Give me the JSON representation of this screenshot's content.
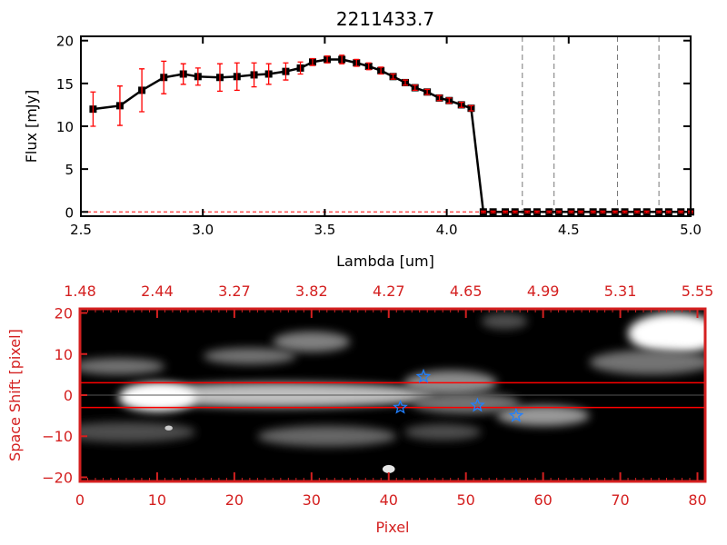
{
  "chart_data": [
    {
      "type": "line",
      "title": "2211433.7",
      "xlabel": "Lambda [um]",
      "ylabel": "Flux [mJy]",
      "xlim": [
        2.5,
        5.0
      ],
      "ylim": [
        -0.5,
        20.5
      ],
      "xticks": [
        "2.5",
        "3.0",
        "3.5",
        "4.0",
        "4.5",
        "5.0"
      ],
      "yticks": [
        "0",
        "5",
        "10",
        "15",
        "20"
      ],
      "series": [
        {
          "name": "flux",
          "x": [
            2.55,
            2.66,
            2.75,
            2.84,
            2.92,
            2.98,
            3.07,
            3.14,
            3.21,
            3.27,
            3.34,
            3.4,
            3.45,
            3.51,
            3.57,
            3.63,
            3.68,
            3.73,
            3.78,
            3.83,
            3.87,
            3.92,
            3.97,
            4.01,
            4.06,
            4.1,
            4.15,
            4.19,
            4.24,
            4.28,
            4.33,
            4.37,
            4.42,
            4.46,
            4.51,
            4.55,
            4.6,
            4.64,
            4.69,
            4.73,
            4.78,
            4.82,
            4.87,
            4.91,
            4.96,
            5.0
          ],
          "y": [
            12.0,
            12.4,
            14.2,
            15.7,
            16.1,
            15.8,
            15.7,
            15.8,
            16.0,
            16.1,
            16.4,
            16.8,
            17.5,
            17.8,
            17.8,
            17.4,
            17.0,
            16.5,
            15.8,
            15.1,
            14.5,
            14.0,
            13.3,
            13.0,
            12.5,
            12.1,
            0,
            0,
            0,
            0,
            0,
            0,
            0,
            0,
            0,
            0,
            0,
            0,
            0,
            0,
            0,
            0,
            0,
            0,
            0,
            0
          ],
          "err": [
            2.0,
            2.3,
            2.5,
            1.9,
            1.2,
            1.0,
            1.6,
            1.6,
            1.4,
            1.2,
            1.0,
            0.7,
            0.4,
            0.4,
            0.5,
            0.4,
            0.4,
            0.4,
            0.3,
            0.3,
            0.3,
            0.3,
            0.3,
            0.3,
            0.3,
            0.3,
            0.1,
            0.1,
            0.1,
            0.1,
            0.1,
            0.1,
            0.1,
            0.1,
            0.1,
            0.1,
            0.1,
            0.1,
            0.1,
            0.1,
            0.1,
            0.1,
            0.1,
            0.1,
            0.1,
            0.1
          ]
        }
      ],
      "vlines": [
        4.31,
        4.44,
        4.7,
        4.87
      ]
    },
    {
      "type": "heatmap",
      "xlabel": "Pixel",
      "ylabel": "Space Shift [pixel]",
      "xlim": [
        0,
        81
      ],
      "ylim": [
        -21,
        21
      ],
      "xticks": [
        "0",
        "10",
        "20",
        "30",
        "40",
        "50",
        "60",
        "70",
        "80"
      ],
      "yticks": [
        "-20",
        "-10",
        "0",
        "10",
        "20"
      ],
      "top_ticks": [
        "1.48",
        "2.44",
        "3.27",
        "3.82",
        "4.27",
        "4.65",
        "4.99",
        "5.31",
        "5.55"
      ],
      "hlines": [
        3,
        -3
      ],
      "stars": [
        {
          "x": 44.5,
          "y": 4.5
        },
        {
          "x": 41.5,
          "y": -3
        },
        {
          "x": 51.5,
          "y": -2.5
        },
        {
          "x": 56.5,
          "y": -5
        }
      ],
      "blobs": [
        {
          "x": 26,
          "y": 0,
          "rx": 20,
          "ry": 3,
          "v": 0.75
        },
        {
          "x": 10,
          "y": -0.5,
          "rx": 5,
          "ry": 3.5,
          "v": 1.0
        },
        {
          "x": 48,
          "y": 3,
          "rx": 6,
          "ry": 3,
          "v": 0.55
        },
        {
          "x": 60,
          "y": -5,
          "rx": 6,
          "ry": 2.5,
          "v": 0.6
        },
        {
          "x": 50,
          "y": -2,
          "rx": 7,
          "ry": 2.5,
          "v": 0.45
        },
        {
          "x": 77,
          "y": 15,
          "rx": 6,
          "ry": 5,
          "v": 1.0
        },
        {
          "x": 74,
          "y": 8,
          "rx": 8,
          "ry": 3,
          "v": 0.45
        },
        {
          "x": 30,
          "y": 13,
          "rx": 5,
          "ry": 2.5,
          "v": 0.5
        },
        {
          "x": 22,
          "y": 9.5,
          "rx": 6,
          "ry": 2,
          "v": 0.45
        },
        {
          "x": 5,
          "y": 7,
          "rx": 6,
          "ry": 2,
          "v": 0.45
        },
        {
          "x": 6,
          "y": -9,
          "rx": 9,
          "ry": 2.5,
          "v": 0.3
        },
        {
          "x": 32,
          "y": -10,
          "rx": 9,
          "ry": 2.5,
          "v": 0.4
        },
        {
          "x": 47,
          "y": -9,
          "rx": 5,
          "ry": 2,
          "v": 0.3
        },
        {
          "x": 55,
          "y": 18,
          "rx": 3,
          "ry": 2,
          "v": 0.3
        },
        {
          "x": 40,
          "y": -18,
          "rx": 0.8,
          "ry": 1,
          "v": 0.9
        },
        {
          "x": 11.5,
          "y": -8,
          "rx": 0.5,
          "ry": 0.6,
          "v": 0.8
        }
      ]
    }
  ],
  "colors": {
    "axis2": "#d42020",
    "error": "#ff0000",
    "star": "#2080ff"
  }
}
